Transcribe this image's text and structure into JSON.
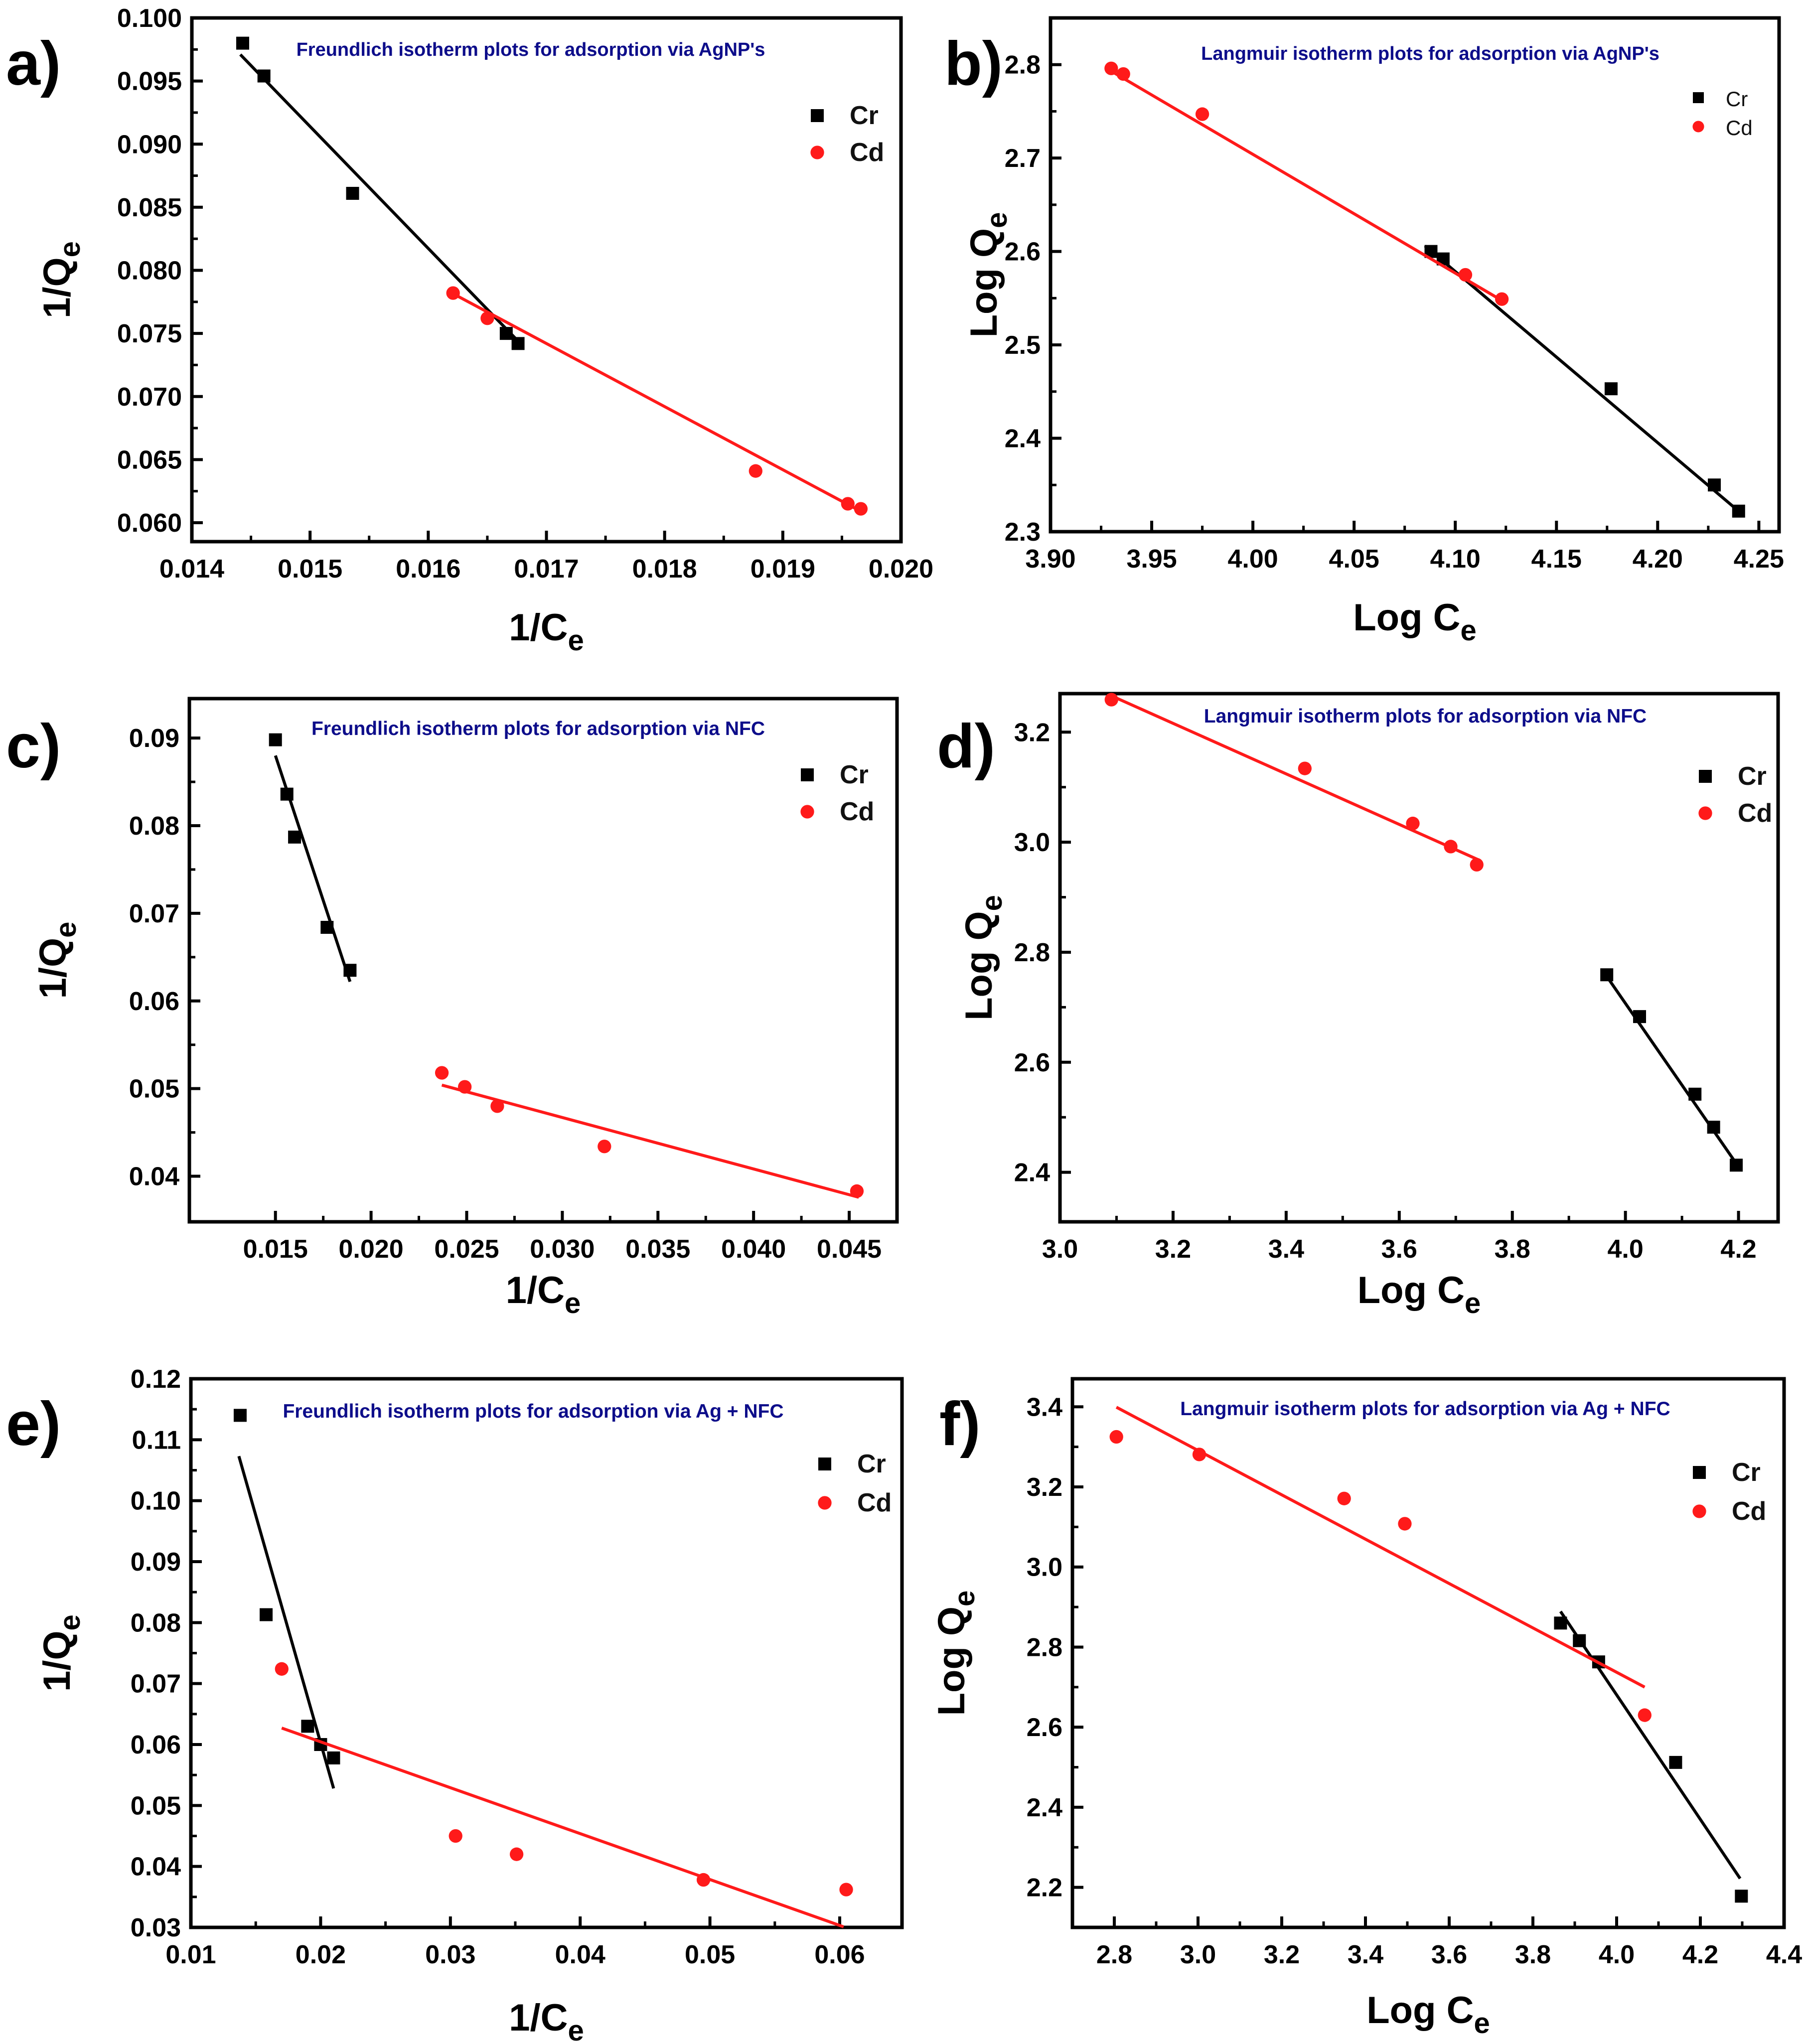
{
  "chart_data": [
    {
      "panel_label": "a)",
      "type": "scatter",
      "title": "Freundlich isotherm plots for adsorption via AgNP's",
      "xlabel": "1/C",
      "xlabel_sub": "e",
      "ylabel": "1/Q",
      "ylabel_sub": "e",
      "xlim": [
        0.014,
        0.02
      ],
      "ylim": [
        0.0585,
        0.1
      ],
      "xticks": [
        0.014,
        0.015,
        0.016,
        0.017,
        0.018,
        0.019,
        0.02
      ],
      "xtick_labels": [
        "0.014",
        "0.015",
        "0.016",
        "0.017",
        "0.018",
        "0.019",
        "0.020"
      ],
      "yticks": [
        0.06,
        0.065,
        0.07,
        0.075,
        0.08,
        0.085,
        0.09,
        0.095,
        0.1
      ],
      "ytick_labels": [
        "0.060",
        "0.065",
        "0.070",
        "0.075",
        "0.080",
        "0.085",
        "0.090",
        "0.095",
        "0.100"
      ],
      "legend": "top-right",
      "series": [
        {
          "name": "Cr",
          "color": "#000000",
          "marker": "square",
          "x": [
            0.01443,
            0.01461,
            0.01536,
            0.01666,
            0.01676
          ],
          "y": [
            0.098,
            0.0954,
            0.0861,
            0.075,
            0.0742
          ],
          "fit": {
            "x": [
              0.01441,
              0.01678
            ],
            "y": [
              0.0971,
              0.0742
            ]
          }
        },
        {
          "name": "Cd",
          "color": "#ff1a1a",
          "marker": "circle",
          "x": [
            0.01621,
            0.0165,
            0.01877,
            0.01955,
            0.01966
          ],
          "y": [
            0.0782,
            0.0762,
            0.0641,
            0.0615,
            0.0611
          ],
          "fit": {
            "x": [
              0.0162,
              0.01962
            ],
            "y": [
              0.0782,
              0.0611
            ]
          }
        }
      ]
    },
    {
      "panel_label": "b)",
      "type": "scatter",
      "title": "Langmuir isotherm plots for adsorption via AgNP's",
      "xlabel": "Log C",
      "xlabel_sub": "e",
      "ylabel": "Log Q",
      "ylabel_sub": "e",
      "xlim": [
        3.9,
        4.26
      ],
      "ylim": [
        2.3,
        2.85
      ],
      "xticks": [
        3.9,
        3.95,
        4.0,
        4.05,
        4.1,
        4.15,
        4.2,
        4.25
      ],
      "xtick_labels": [
        "3.90",
        "3.95",
        "4.00",
        "4.05",
        "4.10",
        "4.15",
        "4.20",
        "4.25"
      ],
      "yticks": [
        2.3,
        2.4,
        2.5,
        2.6,
        2.7,
        2.8
      ],
      "ytick_labels": [
        "2.3",
        "2.4",
        "2.5",
        "2.6",
        "2.7",
        "2.8"
      ],
      "legend": "top-right",
      "series": [
        {
          "name": "Cr",
          "color": "#000000",
          "marker": "square",
          "x": [
            4.088,
            4.094,
            4.177,
            4.228,
            4.24
          ],
          "y": [
            2.6,
            2.592,
            2.453,
            2.35,
            2.322
          ],
          "fit": {
            "x": [
              4.085,
              4.24
            ],
            "y": [
              2.606,
              2.322
            ]
          }
        },
        {
          "name": "Cd",
          "color": "#ff1a1a",
          "marker": "circle",
          "x": [
            3.93,
            3.936,
            3.975,
            4.105,
            4.123
          ],
          "y": [
            2.796,
            2.79,
            2.747,
            2.575,
            2.549
          ],
          "fit": {
            "x": [
              3.93,
              4.125
            ],
            "y": [
              2.793,
              2.545
            ]
          }
        }
      ]
    },
    {
      "panel_label": "c)",
      "type": "scatter",
      "title": "Freundlich isotherm plots for adsorption via NFC",
      "xlabel": "1/C",
      "xlabel_sub": "e",
      "ylabel": "1/Q",
      "ylabel_sub": "e",
      "xlim": [
        0.0105,
        0.0475
      ],
      "ylim": [
        0.0348,
        0.0945
      ],
      "xticks": [
        0.015,
        0.02,
        0.025,
        0.03,
        0.035,
        0.04,
        0.045
      ],
      "xtick_labels": [
        "0.015",
        "0.020",
        "0.025",
        "0.030",
        "0.035",
        "0.040",
        "0.045"
      ],
      "yticks": [
        0.04,
        0.05,
        0.06,
        0.07,
        0.08,
        0.09
      ],
      "ytick_labels": [
        "0.04",
        "0.05",
        "0.06",
        "0.07",
        "0.08",
        "0.09"
      ],
      "legend": "top-right",
      "series": [
        {
          "name": "Cr",
          "color": "#000000",
          "marker": "square",
          "x": [
            0.015,
            0.0156,
            0.016,
            0.0177,
            0.0189
          ],
          "y": [
            0.0898,
            0.0836,
            0.0787,
            0.0684,
            0.0635
          ],
          "fit": {
            "x": [
              0.015,
              0.0189
            ],
            "y": [
              0.088,
              0.0622
            ]
          }
        },
        {
          "name": "Cd",
          "color": "#ff1a1a",
          "marker": "circle",
          "x": [
            0.0237,
            0.0249,
            0.0266,
            0.0322,
            0.0454
          ],
          "y": [
            0.0518,
            0.0502,
            0.048,
            0.0434,
            0.0383
          ],
          "fit": {
            "x": [
              0.0237,
              0.0455
            ],
            "y": [
              0.0504,
              0.0376
            ]
          }
        }
      ]
    },
    {
      "panel_label": "d)",
      "type": "scatter",
      "title": "Langmuir isotherm plots for adsorption via NFC",
      "xlabel": "Log C",
      "xlabel_sub": "e",
      "ylabel": "Log Q",
      "ylabel_sub": "e",
      "xlim": [
        3.0,
        4.27
      ],
      "ylim": [
        2.31,
        3.27
      ],
      "xticks": [
        3.0,
        3.2,
        3.4,
        3.6,
        3.8,
        4.0,
        4.2
      ],
      "xtick_labels": [
        "3.0",
        "3.2",
        "3.4",
        "3.6",
        "3.8",
        "4.0",
        "4.2"
      ],
      "yticks": [
        2.4,
        2.6,
        2.8,
        3.0,
        3.2
      ],
      "ytick_labels": [
        "2.4",
        "2.6",
        "2.8",
        "3.0",
        "3.2"
      ],
      "legend": "top-right",
      "series": [
        {
          "name": "Cr",
          "color": "#000000",
          "marker": "square",
          "x": [
            3.967,
            4.025,
            4.123,
            4.156,
            4.196
          ],
          "y": [
            2.759,
            2.683,
            2.542,
            2.482,
            2.413
          ],
          "fit": {
            "x": [
              3.965,
              4.196
            ],
            "y": [
              2.759,
              2.416
            ]
          }
        },
        {
          "name": "Cd",
          "color": "#ff1a1a",
          "marker": "circle",
          "x": [
            3.091,
            3.433,
            3.624,
            3.691,
            3.737
          ],
          "y": [
            3.259,
            3.134,
            3.034,
            2.992,
            2.959
          ],
          "fit": {
            "x": [
              3.091,
              3.74
            ],
            "y": [
              3.266,
              2.968
            ]
          }
        }
      ]
    },
    {
      "panel_label": "e)",
      "type": "scatter",
      "title": "Freundlich isotherm plots for adsorption via Ag + NFC",
      "xlabel": "1/C",
      "xlabel_sub": "e",
      "ylabel": "1/Q",
      "ylabel_sub": "e",
      "xlim": [
        0.01,
        0.0648
      ],
      "ylim": [
        0.03,
        0.12
      ],
      "xticks": [
        0.01,
        0.02,
        0.03,
        0.04,
        0.05,
        0.06
      ],
      "xtick_labels": [
        "0.01",
        "0.02",
        "0.03",
        "0.04",
        "0.05",
        "0.06"
      ],
      "yticks": [
        0.03,
        0.04,
        0.05,
        0.06,
        0.07,
        0.08,
        0.09,
        0.1,
        0.11,
        0.12
      ],
      "ytick_labels": [
        "0.03",
        "0.04",
        "0.05",
        "0.06",
        "0.07",
        "0.08",
        "0.09",
        "0.10",
        "0.11",
        "0.12"
      ],
      "legend": "top-right",
      "series": [
        {
          "name": "Cr",
          "color": "#000000",
          "marker": "square",
          "x": [
            0.0138,
            0.0158,
            0.019,
            0.02,
            0.021
          ],
          "y": [
            0.114,
            0.0813,
            0.063,
            0.06,
            0.0578
          ],
          "fit": {
            "x": [
              0.0137,
              0.021
            ],
            "y": [
              0.1073,
              0.0528
            ]
          }
        },
        {
          "name": "Cd",
          "color": "#ff1a1a",
          "marker": "circle",
          "x": [
            0.017,
            0.0304,
            0.0351,
            0.0495,
            0.0605
          ],
          "y": [
            0.0724,
            0.045,
            0.042,
            0.0378,
            0.0362
          ],
          "fit": {
            "x": [
              0.017,
              0.0603
            ],
            "y": [
              0.0627,
              0.0301
            ]
          }
        }
      ]
    },
    {
      "panel_label": "f)",
      "type": "scatter",
      "title": "Langmuir isotherm plots for adsorption via Ag + NFC",
      "xlabel": "Log C",
      "xlabel_sub": "e",
      "ylabel": "Log Q",
      "ylabel_sub": "e",
      "xlim": [
        2.7,
        4.4
      ],
      "ylim": [
        2.1,
        3.47
      ],
      "xticks": [
        2.8,
        3.0,
        3.2,
        3.4,
        3.6,
        3.8,
        4.0,
        4.2,
        4.4
      ],
      "xtick_labels": [
        "2.8",
        "3.0",
        "3.2",
        "3.4",
        "3.6",
        "3.8",
        "4.0",
        "4.2",
        "4.4"
      ],
      "yticks": [
        2.2,
        2.4,
        2.6,
        2.8,
        3.0,
        3.2,
        3.4
      ],
      "ytick_labels": [
        "2.2",
        "2.4",
        "2.6",
        "2.8",
        "3.0",
        "3.2",
        "3.4"
      ],
      "legend": "top-right",
      "series": [
        {
          "name": "Cr",
          "color": "#000000",
          "marker": "square",
          "x": [
            3.866,
            3.911,
            3.957,
            4.141,
            4.298
          ],
          "y": [
            2.86,
            2.816,
            2.763,
            2.512,
            2.178
          ],
          "fit": {
            "x": [
              3.866,
              4.295
            ],
            "y": [
              2.889,
              2.222
            ]
          }
        },
        {
          "name": "Cd",
          "color": "#ff1a1a",
          "marker": "circle",
          "x": [
            2.805,
            3.003,
            3.349,
            3.494,
            4.067
          ],
          "y": [
            3.325,
            3.281,
            3.171,
            3.108,
            2.63
          ],
          "fit": {
            "x": [
              2.805,
              4.067
            ],
            "y": [
              3.399,
              2.7
            ]
          }
        }
      ]
    }
  ]
}
